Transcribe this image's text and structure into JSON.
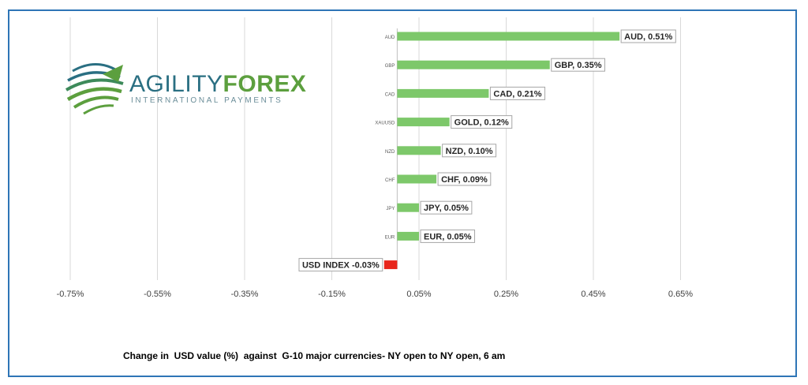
{
  "logo": {
    "part1": "AGILITY",
    "part2": "FOREX",
    "tagline": "INTERNATIONAL PAYMENTS"
  },
  "caption": "Change in  USD value (%)  against  G-10 major currencies- NY open to NY open, 6 am",
  "colors": {
    "positive": "#7dc86a",
    "negative": "#e8261c",
    "grid": "#d9d9d9",
    "frame": "#2e75b6"
  },
  "chart_data": {
    "type": "bar",
    "orientation": "horizontal",
    "categories": [
      "AUD",
      "GBP",
      "CAD",
      "XAUUSD",
      "NZD",
      "CHF",
      "JPY",
      "EUR",
      ""
    ],
    "values": [
      0.51,
      0.35,
      0.21,
      0.12,
      0.1,
      0.09,
      0.05,
      0.05,
      -0.03
    ],
    "data_labels": [
      "AUD, 0.51%",
      "GBP, 0.35%",
      "CAD, 0.21%",
      "GOLD, 0.12%",
      "NZD, 0.10%",
      "CHF, 0.09%",
      "JPY, 0.05%",
      "EUR, 0.05%",
      "USD INDEX -0.03%"
    ],
    "xlim": [
      -0.8,
      0.7
    ],
    "xticks": [
      -0.75,
      -0.55,
      -0.35,
      -0.15,
      0.05,
      0.25,
      0.45,
      0.65
    ],
    "xtick_labels": [
      "-0.75%",
      "-0.55%",
      "-0.35%",
      "-0.15%",
      "0.05%",
      "0.25%",
      "0.45%",
      "0.65%"
    ],
    "grid": true,
    "legend": false
  }
}
